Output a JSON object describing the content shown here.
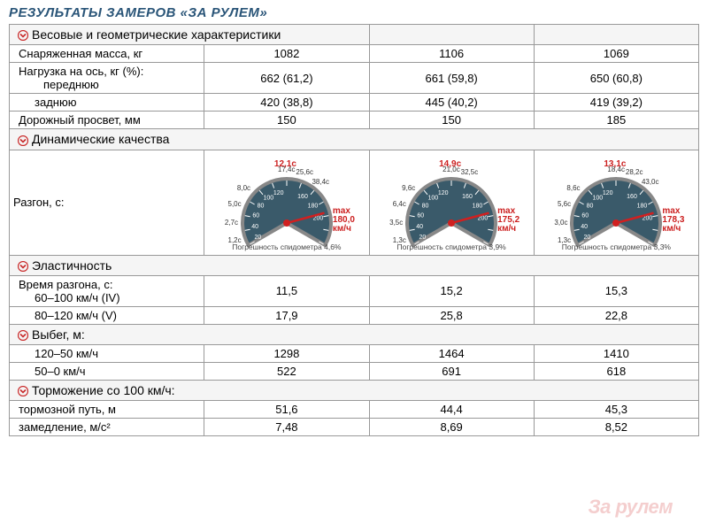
{
  "title": "РЕЗУЛЬТАТЫ ЗАМЕРОВ «ЗА РУЛЕМ»",
  "colors": {
    "title": "#2a5578",
    "section_bg": "#f5f5f5",
    "border": "#999999",
    "speedo_face": "#3a5a6a",
    "speedo_rim": "#888888",
    "needle": "#d02020",
    "accent_red": "#cc2020",
    "chevron": "#c92a2a"
  },
  "sections": {
    "weight": {
      "header": "Весовые и геометрические характеристики",
      "rows": {
        "curb": {
          "label": "Снаряженная масса, кг",
          "vals": [
            "1082",
            "1106",
            "1069"
          ]
        },
        "axle": {
          "label": "Нагрузка на ось, кг (%):"
        },
        "front": {
          "label": "переднюю",
          "vals": [
            "662 (61,2)",
            "661 (59,8)",
            "650 (60,8)"
          ]
        },
        "rear": {
          "label": "заднюю",
          "vals": [
            "420 (38,8)",
            "445 (40,2)",
            "419 (39,2)"
          ]
        },
        "clearance": {
          "label": "Дорожный просвет, мм",
          "vals": [
            "150",
            "150",
            "185"
          ]
        }
      }
    },
    "dyn": {
      "header": "Динамические качества",
      "label": "Разгон, с:",
      "speedos": [
        {
          "center_top": "12,1c",
          "max_val": "180,0",
          "err": "Погрешность спидометра 4,6%",
          "ticks": [
            {
              "t": "1,2c",
              "a": 200
            },
            {
              "t": "2,7c",
              "a": 180
            },
            {
              "t": "5,0c",
              "a": 160
            },
            {
              "t": "8,0c",
              "a": 140
            },
            {
              "t": "17,4c",
              "a": 90
            },
            {
              "t": "25,6c",
              "a": 70
            },
            {
              "t": "38,4c",
              "a": 50
            }
          ],
          "inner": [
            "20",
            "40",
            "60",
            "80",
            "100",
            "120",
            "160",
            "180",
            "200"
          ]
        },
        {
          "center_top": "14,9c",
          "max_val": "175,2",
          "err": "Погрешность спидометра 3,9%",
          "ticks": [
            {
              "t": "1,3c",
              "a": 200
            },
            {
              "t": "3,5c",
              "a": 180
            },
            {
              "t": "6,4c",
              "a": 160
            },
            {
              "t": "9,6c",
              "a": 140
            },
            {
              "t": "21,0c",
              "a": 90
            },
            {
              "t": "32,5c",
              "a": 70
            }
          ],
          "inner": [
            "20",
            "40",
            "60",
            "80",
            "100",
            "120",
            "160",
            "180",
            "200"
          ]
        },
        {
          "center_top": "13,1c",
          "max_val": "178,3",
          "err": "Погрешность спидометра 3,3%",
          "ticks": [
            {
              "t": "1,3c",
              "a": 200
            },
            {
              "t": "3,0c",
              "a": 180
            },
            {
              "t": "5,6c",
              "a": 160
            },
            {
              "t": "8,6c",
              "a": 140
            },
            {
              "t": "18,4c",
              "a": 90
            },
            {
              "t": "28,2c",
              "a": 70
            },
            {
              "t": "43,0c",
              "a": 50
            }
          ],
          "inner": [
            "20",
            "40",
            "60",
            "80",
            "100",
            "120",
            "160",
            "180",
            "200"
          ]
        }
      ]
    },
    "elast": {
      "header": "Эластичность",
      "rows": {
        "accel": {
          "label": "Время разгона, с:"
        },
        "r6100": {
          "label": "60–100 км/ч (IV)",
          "vals": [
            "11,5",
            "15,2",
            "15,3"
          ]
        },
        "r8120": {
          "label": "80–120 км/ч (V)",
          "vals": [
            "17,9",
            "25,8",
            "22,8"
          ]
        }
      }
    },
    "coast": {
      "header": "Выбег, м:",
      "rows": {
        "r12050": {
          "label": "120–50 км/ч",
          "vals": [
            "1298",
            "1464",
            "1410"
          ]
        },
        "r500": {
          "label": "50–0 км/ч",
          "vals": [
            "522",
            "691",
            "618"
          ]
        }
      }
    },
    "brake": {
      "header": "Торможение со 100 км/ч:",
      "rows": {
        "dist": {
          "label": "тормозной путь, м",
          "vals": [
            "51,6",
            "44,4",
            "45,3"
          ]
        },
        "decel": {
          "label": "замедление, м/с²",
          "vals": [
            "7,48",
            "8,69",
            "8,52"
          ]
        }
      }
    }
  },
  "watermark": "За рулем",
  "max_label": "max",
  "max_unit": "км/ч"
}
